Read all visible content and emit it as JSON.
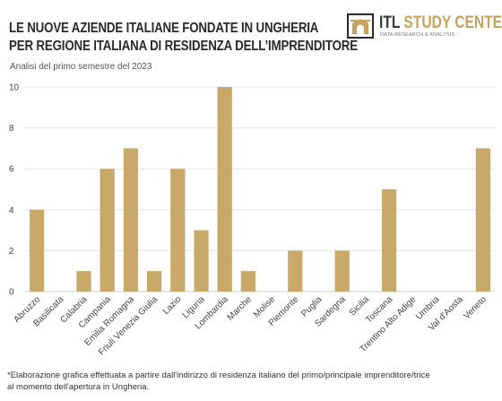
{
  "header": {
    "title_line1": "LE NUOVE AZIENDE ITALIANE FONDATE IN UNGHERIA",
    "title_line2": "PER REGIONE ITALIANA DI RESIDENZA DELL’IMPRENDITORE",
    "subtitle": "Analisi del primo semestre del 2023"
  },
  "logo": {
    "name_part1": "ITL",
    "name_part2": "STUDY CENTER",
    "tagline": "DATA RESEARCH & ANALYSIS",
    "icon": "arch-gate-icon"
  },
  "colors": {
    "bar": "#c8a96a",
    "grid": "#e6e6e6",
    "accent": "#c8a15a"
  },
  "chart_data": {
    "type": "bar",
    "categories": [
      "Abruzzo",
      "Basilicata",
      "Calabria",
      "Campania",
      "Emilia Romagna",
      "Friuli Venezia Giulia",
      "Lazio",
      "Liguria",
      "Lombardia",
      "Marche",
      "Molise",
      "Piemonte",
      "Puglia",
      "Sardegna",
      "Sicilia",
      "Toscana",
      "Trentino Alto Adige",
      "Umbria",
      "Val d'Aosta",
      "Veneto"
    ],
    "values": [
      4,
      0,
      1,
      6,
      7,
      1,
      6,
      3,
      10,
      1,
      0,
      2,
      0,
      2,
      0,
      5,
      0,
      0,
      0,
      7
    ],
    "yticks": [
      "0",
      "2",
      "4",
      "6",
      "8",
      "10"
    ],
    "ylim": [
      0,
      10
    ],
    "grid": true,
    "legend": "none"
  },
  "footnote": {
    "line1": "*Elaborazione grafica effettuata a partire dall'indirizzo di residenza italiano del primo/principale imprenditore/trice",
    "line2": "al momento dell'apertura in Ungheria."
  }
}
